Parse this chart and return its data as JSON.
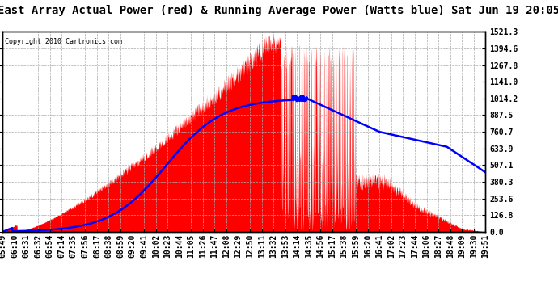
{
  "title": "East Array Actual Power (red) & Running Average Power (Watts blue) Sat Jun 19 20:05",
  "copyright": "Copyright 2010 Cartronics.com",
  "x_labels": [
    "05:49",
    "06:10",
    "06:31",
    "06:32",
    "06:54",
    "07:14",
    "07:35",
    "07:56",
    "08:17",
    "08:38",
    "08:59",
    "09:20",
    "09:41",
    "10:02",
    "10:23",
    "10:44",
    "11:05",
    "11:26",
    "11:47",
    "12:08",
    "12:29",
    "12:50",
    "13:11",
    "13:32",
    "13:53",
    "14:14",
    "14:35",
    "14:56",
    "15:17",
    "15:38",
    "15:59",
    "16:20",
    "16:41",
    "17:02",
    "17:23",
    "17:44",
    "18:06",
    "18:27",
    "18:48",
    "19:09",
    "19:30",
    "19:51"
  ],
  "ymax": 1521.3,
  "yticks": [
    0.0,
    126.8,
    253.6,
    380.3,
    507.1,
    633.9,
    760.7,
    887.5,
    1014.2,
    1141.0,
    1267.8,
    1394.6,
    1521.3
  ],
  "background_color": "#ffffff",
  "plot_bg_color": "#ffffff",
  "grid_color": "#aaaaaa",
  "fill_color": "#ff0000",
  "line_color": "#0000ff",
  "title_fontsize": 10,
  "tick_fontsize": 7,
  "copyright_fontsize": 6
}
